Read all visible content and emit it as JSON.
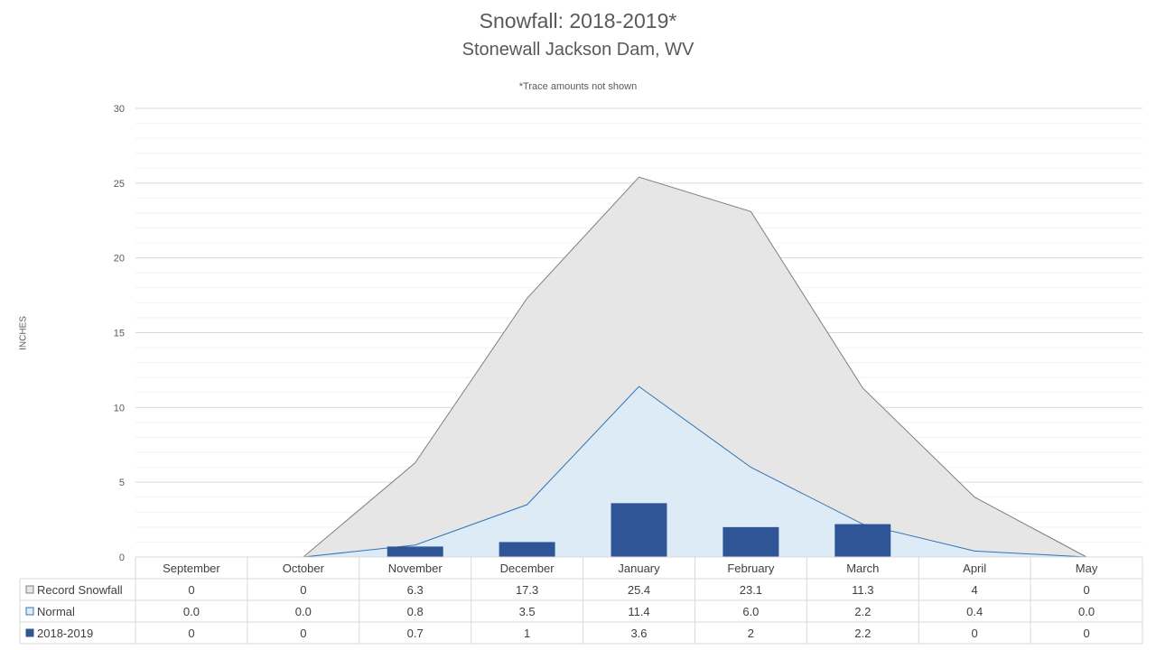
{
  "chart_data": {
    "type": "bar",
    "title": "Snowfall: 2018-2019*",
    "subtitle": "Stonewall Jackson Dam, WV",
    "note": "*Trace amounts not shown",
    "ylabel": "INCHES",
    "ylim": [
      0,
      30
    ],
    "yticks": [
      0,
      5,
      10,
      15,
      20,
      25,
      30
    ],
    "grid": true,
    "legend": "data-table",
    "categories": [
      "September",
      "October",
      "November",
      "December",
      "January",
      "February",
      "March",
      "April",
      "May"
    ],
    "series": [
      {
        "name": "Record Snowfall",
        "type": "area",
        "color": "#e7e6e6",
        "line": "#7f7f7f",
        "values": [
          0,
          0,
          6.3,
          17.3,
          25.4,
          23.1,
          11.3,
          4,
          0
        ],
        "labels": [
          "0",
          "0",
          "6.3",
          "17.3",
          "25.4",
          "23.1",
          "11.3",
          "4",
          "0"
        ]
      },
      {
        "name": "Normal",
        "type": "area",
        "color": "#ddebf7",
        "line": "#2e75b6",
        "values": [
          0.0,
          0.0,
          0.8,
          3.5,
          11.4,
          6.0,
          2.2,
          0.4,
          0.0
        ],
        "labels": [
          "0.0",
          "0.0",
          "0.8",
          "3.5",
          "11.4",
          "6.0",
          "2.2",
          "0.4",
          "0.0"
        ]
      },
      {
        "name": "2018-2019",
        "type": "bar",
        "color": "#2f5597",
        "values": [
          0,
          0,
          0.7,
          1,
          3.6,
          2,
          2.2,
          0,
          0
        ],
        "labels": [
          "0",
          "0",
          "0.7",
          "1",
          "3.6",
          "2",
          "2.2",
          "0",
          "0"
        ]
      }
    ]
  }
}
